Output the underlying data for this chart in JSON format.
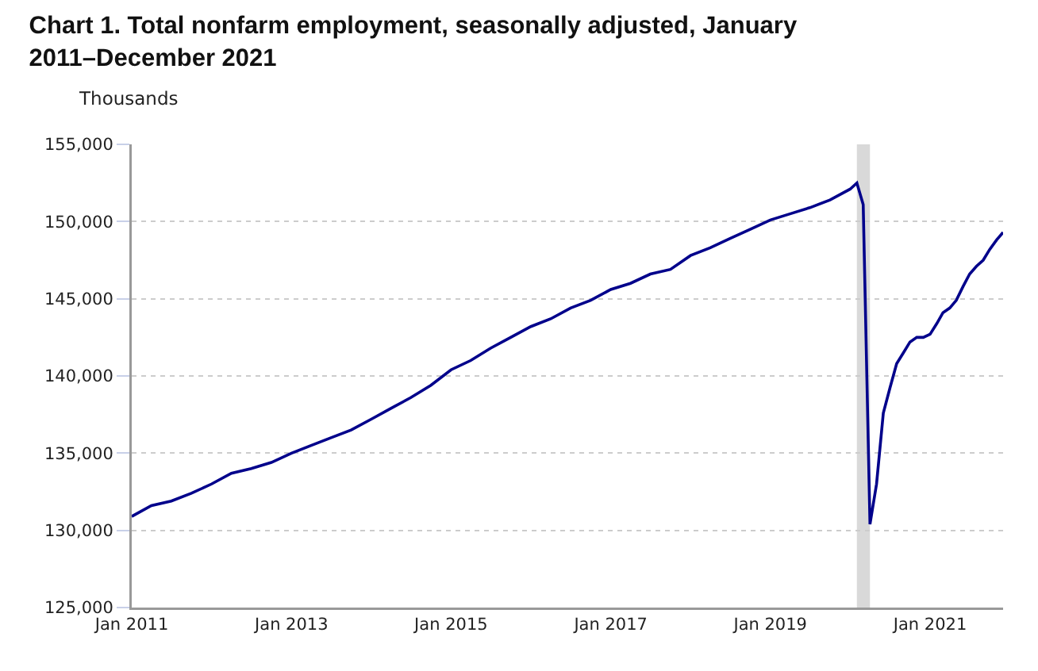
{
  "chart_data": {
    "type": "line",
    "title": "Chart 1. Total nonfarm employment, seasonally adjusted, January 2011–December 2021",
    "ylabel": "Thousands",
    "x": [
      "2011-01",
      "2011-04",
      "2011-07",
      "2011-10",
      "2012-01",
      "2012-04",
      "2012-07",
      "2012-10",
      "2013-01",
      "2013-04",
      "2013-07",
      "2013-10",
      "2014-01",
      "2014-04",
      "2014-07",
      "2014-10",
      "2015-01",
      "2015-04",
      "2015-07",
      "2015-10",
      "2016-01",
      "2016-04",
      "2016-07",
      "2016-10",
      "2017-01",
      "2017-04",
      "2017-07",
      "2017-10",
      "2018-01",
      "2018-04",
      "2018-07",
      "2018-10",
      "2019-01",
      "2019-04",
      "2019-07",
      "2019-10",
      "2020-01",
      "2020-02",
      "2020-03",
      "2020-04",
      "2020-05",
      "2020-06",
      "2020-07",
      "2020-08",
      "2020-09",
      "2020-10",
      "2020-11",
      "2020-12",
      "2021-01",
      "2021-02",
      "2021-03",
      "2021-04",
      "2021-05",
      "2021-06",
      "2021-07",
      "2021-08",
      "2021-09",
      "2021-10",
      "2021-11",
      "2021-12"
    ],
    "series": [
      {
        "color": "#00008b",
        "values": [
          130900,
          131600,
          131900,
          132400,
          133000,
          133700,
          134000,
          134400,
          135000,
          135500,
          136000,
          136500,
          137200,
          137900,
          138600,
          139400,
          140400,
          141000,
          141800,
          142500,
          143200,
          143700,
          144400,
          144900,
          145600,
          146000,
          146600,
          146900,
          147800,
          148300,
          148900,
          149500,
          150100,
          150500,
          150900,
          151400,
          152100,
          152500,
          151100,
          130400,
          133000,
          137600,
          139200,
          140800,
          141500,
          142200,
          142500,
          142500,
          142700,
          143400,
          144100,
          144400,
          144900,
          145800,
          146600,
          147100,
          147500,
          148200,
          148800,
          149300
        ]
      }
    ],
    "xlim": [
      "2011-01",
      "2021-12"
    ],
    "xticks": [
      {
        "value": "2011-01",
        "label": "Jan 2011"
      },
      {
        "value": "2013-01",
        "label": "Jan 2013"
      },
      {
        "value": "2015-01",
        "label": "Jan 2015"
      },
      {
        "value": "2017-01",
        "label": "Jan 2017"
      },
      {
        "value": "2019-01",
        "label": "Jan 2019"
      },
      {
        "value": "2021-01",
        "label": "Jan 2021"
      }
    ],
    "ylim": [
      125000,
      155000
    ],
    "yticks": [
      {
        "value": 125000,
        "label": "125,000"
      },
      {
        "value": 130000,
        "label": "130,000"
      },
      {
        "value": 135000,
        "label": "135,000"
      },
      {
        "value": 140000,
        "label": "140,000"
      },
      {
        "value": 145000,
        "label": "145,000"
      },
      {
        "value": 150000,
        "label": "150,000"
      },
      {
        "value": 155000,
        "label": "155,000"
      }
    ],
    "bands": [
      {
        "axis": "x",
        "from": "2020-02",
        "to": "2020-04",
        "color": "#d9d9d9"
      }
    ],
    "grid": "y",
    "marker": "none",
    "line_style": "solid"
  }
}
